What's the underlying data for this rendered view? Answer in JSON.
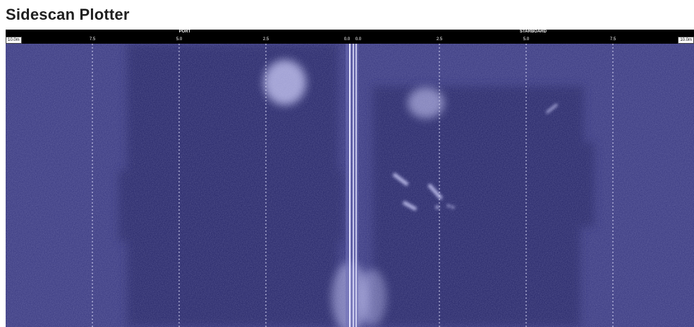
{
  "window": {
    "title": "Sidescan Plotter"
  },
  "scale": {
    "port_label": "PORT",
    "starboard_label": "STARBOARD",
    "left_range": "10.0m",
    "right_range": "10.0m",
    "port_ticks": [
      "7.5",
      "5.0",
      "2.5",
      "0.0"
    ],
    "starboard_ticks": [
      "0.0",
      "2.5",
      "5.0",
      "7.5"
    ]
  },
  "sonar": {
    "colors": {
      "background": "#3f3f85",
      "dark_band": "#2c2c6a",
      "gridline": "#d9d9f5",
      "nadir": "#e8e8ff",
      "highlight": "#b7b7e6"
    }
  }
}
